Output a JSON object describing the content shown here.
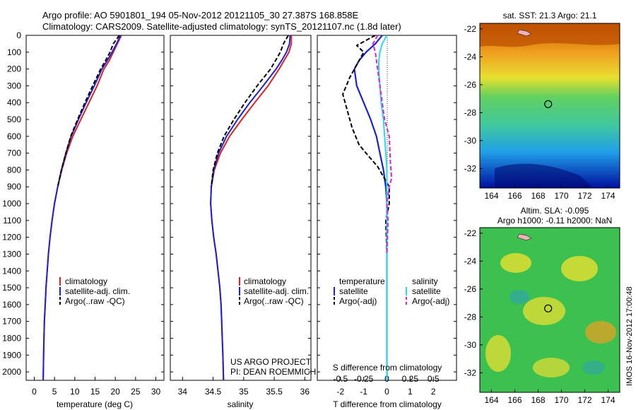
{
  "header": {
    "line1": "Argo profile: AO 5901801_194 05-Nov-2012 20121105_30 27.387S 168.858E",
    "line2": "Climatology: CARS2009. Satellite-adjusted climatology: synTS_20121107.nc (1.8d later)"
  },
  "side_stamp": "IMOS 16-Nov-2012 17:00:48",
  "colors": {
    "climatology": "#e02020",
    "satellite": "#1a22d8",
    "argo": "#000000",
    "sal_satellite": "#22e0e8",
    "sal_argo": "#e020d8"
  },
  "project": {
    "line1": "US ARGO PROJECT",
    "line2": "PI: DEAN ROEMMICH"
  },
  "legend": {
    "climatology": "climatology",
    "satellite_adj": "satellite-adj. clim.",
    "argo_raw": "Argo(..raw -QC)",
    "temperature": "temperature",
    "salinity": "salinity",
    "satellite": "satellite",
    "argo_adj": "Argo(-adj)"
  },
  "maps": {
    "sst_title": "sat. SST: 21.3  Argo: 21.1",
    "sla_title1": "Altim. SLA: -0.095",
    "sla_title2": "Argo h1000: -0.11  h2000: NaN",
    "xticks": [
      "164",
      "166",
      "168",
      "170",
      "172",
      "174"
    ],
    "yticks": [
      "-22",
      "-24",
      "-26",
      "-28",
      "-30",
      "-32"
    ],
    "argo_lon": 168.858,
    "argo_lat": -27.387
  },
  "chart_data": [
    {
      "type": "line",
      "xlabel": "temperature (deg C)",
      "ylabel": "",
      "xlim": [
        -2,
        32
      ],
      "ylim": [
        2050,
        0
      ],
      "xticks": [
        "0",
        "5",
        "10",
        "15",
        "20",
        "25",
        "30"
      ],
      "yticks": [
        "0",
        "100",
        "200",
        "300",
        "400",
        "500",
        "600",
        "700",
        "800",
        "900",
        "1000",
        "1100",
        "1200",
        "1300",
        "1400",
        "1500",
        "1600",
        "1700",
        "1800",
        "1900",
        "2000"
      ],
      "series": [
        {
          "name": "climatology",
          "x": [
            21.5,
            20.5,
            19.5,
            18.5,
            17.2,
            15.5,
            13.5,
            11.5,
            9.5,
            8.0,
            6.8,
            5.8,
            5.0,
            4.4,
            3.9,
            3.5,
            3.2,
            2.9,
            2.7,
            2.5,
            2.4,
            2.3,
            2.2
          ],
          "y": [
            0,
            50,
            100,
            150,
            200,
            300,
            400,
            500,
            600,
            700,
            800,
            900,
            1000,
            1100,
            1200,
            1300,
            1400,
            1500,
            1600,
            1700,
            1800,
            1900,
            2050
          ]
        },
        {
          "name": "satellite-adj. clim.",
          "x": [
            21.3,
            20.3,
            19.2,
            18.0,
            16.7,
            14.8,
            12.8,
            10.9,
            9.1,
            7.8,
            6.7,
            5.8,
            5.0,
            4.4,
            3.9,
            3.5,
            3.2,
            2.9,
            2.7,
            2.5,
            2.4,
            2.3,
            2.2
          ],
          "y": [
            0,
            50,
            100,
            150,
            200,
            300,
            400,
            500,
            600,
            700,
            800,
            900,
            1000,
            1100,
            1200,
            1300,
            1400,
            1500,
            1600,
            1700,
            1800,
            1900,
            2050
          ]
        },
        {
          "name": "Argo(..raw -QC)",
          "x": [
            21.0,
            19.5,
            18.7,
            17.6,
            16.4,
            14.4,
            12.5,
            10.7,
            9.0,
            7.8,
            6.7,
            5.8
          ],
          "y": [
            0,
            50,
            100,
            150,
            200,
            300,
            400,
            500,
            600,
            700,
            800,
            900
          ]
        }
      ]
    },
    {
      "type": "line",
      "xlabel": "salinity",
      "ylabel": "",
      "xlim": [
        33.8,
        36.1
      ],
      "ylim": [
        2050,
        0
      ],
      "xticks": [
        "34",
        "34.5",
        "35",
        "35.5",
        "36"
      ],
      "series": [
        {
          "name": "climatology",
          "x": [
            35.78,
            35.78,
            35.74,
            35.66,
            35.58,
            35.4,
            35.18,
            34.97,
            34.77,
            34.62,
            34.52,
            34.47,
            34.46,
            34.48,
            34.51,
            34.55,
            34.58,
            34.61,
            34.63,
            34.64,
            34.65,
            34.66,
            34.67
          ],
          "y": [
            0,
            50,
            100,
            150,
            200,
            300,
            400,
            500,
            600,
            700,
            800,
            900,
            1000,
            1100,
            1200,
            1300,
            1400,
            1500,
            1600,
            1700,
            1800,
            1900,
            2050
          ]
        },
        {
          "name": "satellite-adj. clim.",
          "x": [
            35.76,
            35.75,
            35.7,
            35.62,
            35.53,
            35.32,
            35.1,
            34.9,
            34.72,
            34.59,
            34.51,
            34.47,
            34.46,
            34.48,
            34.51,
            34.55,
            34.58,
            34.61,
            34.63,
            34.64,
            34.65,
            34.66,
            34.67
          ],
          "y": [
            0,
            50,
            100,
            150,
            200,
            300,
            400,
            500,
            600,
            700,
            800,
            900,
            1000,
            1100,
            1200,
            1300,
            1400,
            1500,
            1600,
            1700,
            1800,
            1900,
            2050
          ]
        },
        {
          "name": "Argo(..raw -QC)",
          "x": [
            35.73,
            35.65,
            35.6,
            35.52,
            35.44,
            35.22,
            35.02,
            34.84,
            34.68,
            34.57,
            34.5,
            34.47
          ],
          "y": [
            0,
            50,
            100,
            150,
            200,
            300,
            400,
            500,
            600,
            700,
            800,
            900
          ]
        }
      ]
    },
    {
      "type": "line",
      "xlabel": "T difference from climatology",
      "xlabel_top": "S difference from climatology",
      "xlim": [
        -3,
        3
      ],
      "ylim": [
        2050,
        0
      ],
      "xticks": [
        "-2",
        "-1",
        "0",
        "1",
        "2"
      ],
      "xticks_s": [
        "-0.5",
        "-0.25",
        "0",
        "0.25",
        "0.5"
      ],
      "series": [
        {
          "name": "temperature satellite",
          "x": [
            -0.2,
            -0.5,
            -0.9,
            -1.2,
            -1.4,
            -1.3,
            -1.0,
            -0.7,
            -0.45,
            -0.3,
            -0.15,
            -0.05,
            0.0,
            0.0,
            0.0,
            0.0,
            0.0,
            0.0,
            0.0,
            0.0
          ],
          "y": [
            0,
            50,
            100,
            150,
            200,
            300,
            400,
            500,
            600,
            700,
            800,
            900,
            1000,
            1200,
            1400,
            1600,
            1700,
            1800,
            1900,
            2050
          ]
        },
        {
          "name": "temperature Argo(-adj)",
          "x": [
            -0.5,
            -1.3,
            -1.0,
            -1.2,
            -1.6,
            -1.9,
            -1.7,
            -1.5,
            -1.2,
            -0.9,
            -0.4,
            0.1,
            0.1,
            -0.05,
            0.0
          ],
          "y": [
            0,
            60,
            100,
            150,
            250,
            350,
            450,
            550,
            650,
            700,
            780,
            900,
            1000,
            1100,
            1300
          ]
        },
        {
          "name": "salinity satellite",
          "x": [
            0.0,
            -0.2,
            -0.3,
            -0.35,
            -0.35,
            -0.3,
            -0.25,
            -0.15,
            -0.05,
            0.0,
            0.0,
            0.0,
            0.0,
            0.0,
            0.0,
            0.0
          ],
          "y": [
            0,
            50,
            100,
            150,
            200,
            300,
            400,
            500,
            700,
            800,
            1000,
            1200,
            1400,
            1600,
            1800,
            2050
          ]
        },
        {
          "name": "salinity Argo(-adj)",
          "x": [
            -0.4,
            -0.6,
            -0.5,
            -0.4,
            -0.3,
            -0.2,
            -0.1,
            0.1,
            0.15,
            0.2,
            0.1,
            0.0,
            0.05,
            0.0
          ],
          "y": [
            0,
            50,
            100,
            200,
            300,
            400,
            500,
            600,
            750,
            850,
            900,
            1000,
            1100,
            1300
          ]
        }
      ]
    }
  ]
}
